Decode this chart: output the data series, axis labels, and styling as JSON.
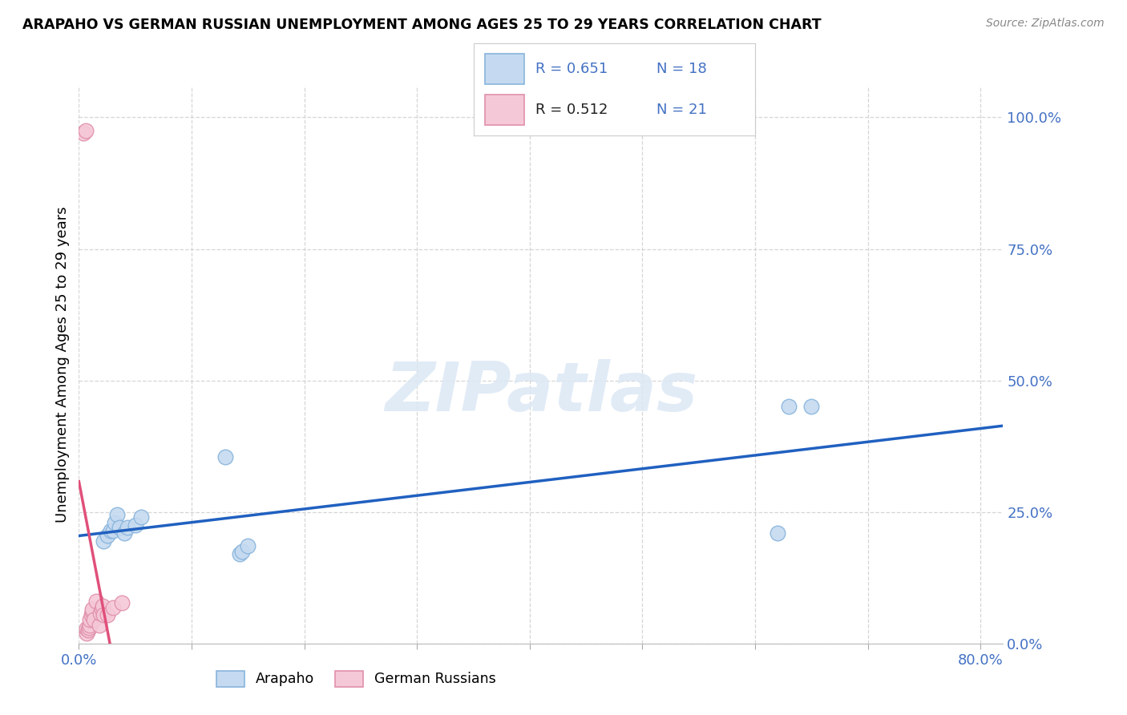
{
  "title": "ARAPAHO VS GERMAN RUSSIAN UNEMPLOYMENT AMONG AGES 25 TO 29 YEARS CORRELATION CHART",
  "source": "Source: ZipAtlas.com",
  "ylabel": "Unemployment Among Ages 25 to 29 years",
  "xlim": [
    0.0,
    0.82
  ],
  "ylim": [
    0.0,
    1.06
  ],
  "xtick_positions": [
    0.0,
    0.1,
    0.2,
    0.3,
    0.4,
    0.5,
    0.6,
    0.7,
    0.8
  ],
  "xticklabels": [
    "0.0%",
    "",
    "",
    "",
    "",
    "",
    "",
    "",
    "80.0%"
  ],
  "ytick_positions": [
    0.0,
    0.25,
    0.5,
    0.75,
    1.0
  ],
  "yticklabels": [
    "0.0%",
    "25.0%",
    "50.0%",
    "75.0%",
    "100.0%"
  ],
  "arapaho_r": 0.651,
  "arapaho_n": 18,
  "german_russian_r": 0.512,
  "german_russian_n": 21,
  "arapaho_scatter_color": "#c5daf0",
  "arapaho_edge_color": "#88b4dc",
  "arapaho_line_color": "#2060c0",
  "german_russian_scatter_color": "#f5c8d8",
  "german_russian_edge_color": "#e090aa",
  "german_russian_line_color": "#e0507a",
  "legend_blue_color": "#4472c4",
  "legend_pink_color": "#e05080",
  "tick_color": "#4472c4",
  "grid_color": "#cccccc",
  "bg_color": "#ffffff",
  "arapaho_x": [
    0.022,
    0.025,
    0.028,
    0.03,
    0.032,
    0.034,
    0.036,
    0.04,
    0.043,
    0.05,
    0.055,
    0.13,
    0.143,
    0.145,
    0.15,
    0.62,
    0.63,
    0.65
  ],
  "arapaho_y": [
    0.195,
    0.205,
    0.215,
    0.215,
    0.23,
    0.245,
    0.22,
    0.21,
    0.22,
    0.225,
    0.24,
    0.355,
    0.17,
    0.175,
    0.185,
    0.21,
    0.45,
    0.45
  ],
  "german_russian_x": [
    0.004,
    0.006,
    0.007,
    0.007,
    0.008,
    0.009,
    0.01,
    0.01,
    0.011,
    0.012,
    0.012,
    0.013,
    0.015,
    0.018,
    0.019,
    0.02,
    0.021,
    0.022,
    0.025,
    0.03,
    0.038
  ],
  "german_russian_y": [
    0.97,
    0.975,
    0.02,
    0.028,
    0.025,
    0.03,
    0.035,
    0.045,
    0.055,
    0.06,
    0.065,
    0.045,
    0.08,
    0.035,
    0.058,
    0.065,
    0.072,
    0.055,
    0.055,
    0.068,
    0.078
  ],
  "watermark_text": "ZIPatlas",
  "watermark_color": "#dce8f5"
}
